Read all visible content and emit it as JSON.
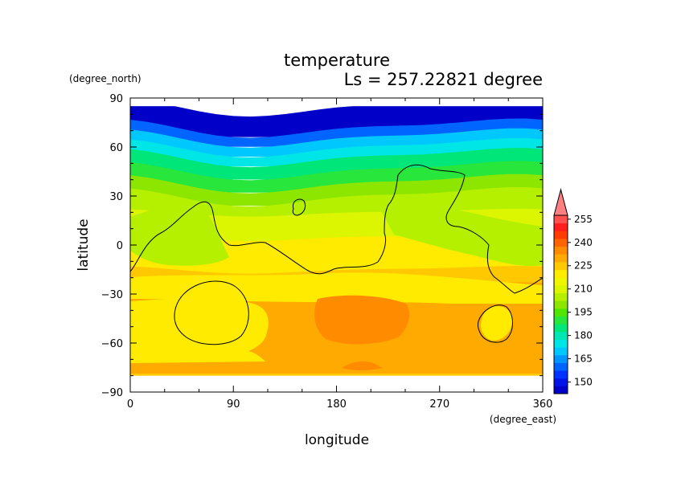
{
  "chart_data": {
    "type": "heatmap",
    "title": "temperature",
    "subtitle": "Ls = 257.22821 degree",
    "xlabel": "longitude",
    "ylabel": "latitude",
    "xunit": "(degree_east)",
    "yunit": "(degree_north)",
    "xlim": [
      0,
      360
    ],
    "ylim": [
      -90,
      90
    ],
    "xticks": [
      "0",
      "90",
      "180",
      "270",
      "360"
    ],
    "yticks": [
      "90",
      "60",
      "30",
      "0",
      "−30",
      "−60",
      "−90"
    ],
    "xtick_values": [
      0,
      90,
      180,
      270,
      360
    ],
    "ytick_values": [
      90,
      60,
      30,
      0,
      -30,
      -60,
      -90
    ],
    "colorbar": {
      "levels": [
        145,
        150,
        155,
        160,
        165,
        170,
        175,
        180,
        185,
        190,
        195,
        200,
        205,
        210,
        215,
        220,
        225,
        230,
        235,
        240,
        245,
        250,
        255,
        260
      ],
      "colors": [
        "#0000c8",
        "#0014e6",
        "#0032ff",
        "#0064ff",
        "#0096ff",
        "#00c8ff",
        "#00e6e6",
        "#00e6b4",
        "#00e678",
        "#28e63c",
        "#50e600",
        "#8ce600",
        "#b4f000",
        "#dcf500",
        "#f0f500",
        "#ffeb00",
        "#ffc800",
        "#ffaa00",
        "#ff8c00",
        "#ff6400",
        "#ff3c00",
        "#ff1e1e",
        "#ff5050",
        "#ff8080"
      ],
      "tick_labels": [
        "150",
        "165",
        "180",
        "195",
        "210",
        "225",
        "240",
        "255"
      ],
      "tick_values": [
        150,
        165,
        180,
        195,
        210,
        225,
        240,
        255
      ],
      "extend": "max"
    },
    "field_description_values": {
      "lat_bands": [
        {
          "lat_top": 85,
          "lat_bottom": 72,
          "temp": 148
        },
        {
          "lat_top": 72,
          "lat_bottom": 66,
          "temp": 160
        },
        {
          "lat_top": 66,
          "lat_bottom": 60,
          "temp": 170
        },
        {
          "lat_top": 60,
          "lat_bottom": 54,
          "temp": 178
        },
        {
          "lat_top": 54,
          "lat_bottom": 46,
          "temp": 186
        },
        {
          "lat_top": 46,
          "lat_bottom": 38,
          "temp": 194
        },
        {
          "lat_top": 38,
          "lat_bottom": 30,
          "temp": 202
        },
        {
          "lat_top": 30,
          "lat_bottom": 20,
          "temp": 208
        },
        {
          "lat_top": 20,
          "lat_bottom": 5,
          "temp": 214
        },
        {
          "lat_top": 5,
          "lat_bottom": -15,
          "temp": 220
        },
        {
          "lat_top": -15,
          "lat_bottom": -25,
          "temp": 225
        },
        {
          "lat_top": -25,
          "lat_bottom": -80,
          "temp": 230
        }
      ]
    }
  }
}
